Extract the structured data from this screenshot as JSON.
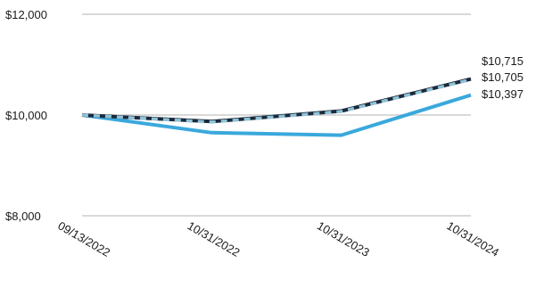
{
  "chart_data": {
    "type": "line",
    "title": "",
    "xlabel": "",
    "ylabel": "",
    "categories": [
      "09/13/2022",
      "10/31/2022",
      "10/31/2023",
      "10/31/2024"
    ],
    "ylim": [
      8000,
      12000
    ],
    "yticks": [
      8000,
      10000,
      12000
    ],
    "ytick_labels": [
      "$8,000",
      "$10,000",
      "$12,000"
    ],
    "grid": "horizontal",
    "series": [
      {
        "values": [
          10000,
          9870,
          10080,
          10715
        ],
        "color": "#1b2a3d",
        "style": "solid",
        "end_label": "$10,715"
      },
      {
        "values": [
          10000,
          9860,
          10070,
          10705
        ],
        "color": "#8fc3d6",
        "style": "dashed",
        "end_label": "$10,705"
      },
      {
        "values": [
          10000,
          9650,
          9600,
          10397
        ],
        "color": "#3aa8dc",
        "style": "solid",
        "end_label": "$10,397"
      }
    ]
  }
}
